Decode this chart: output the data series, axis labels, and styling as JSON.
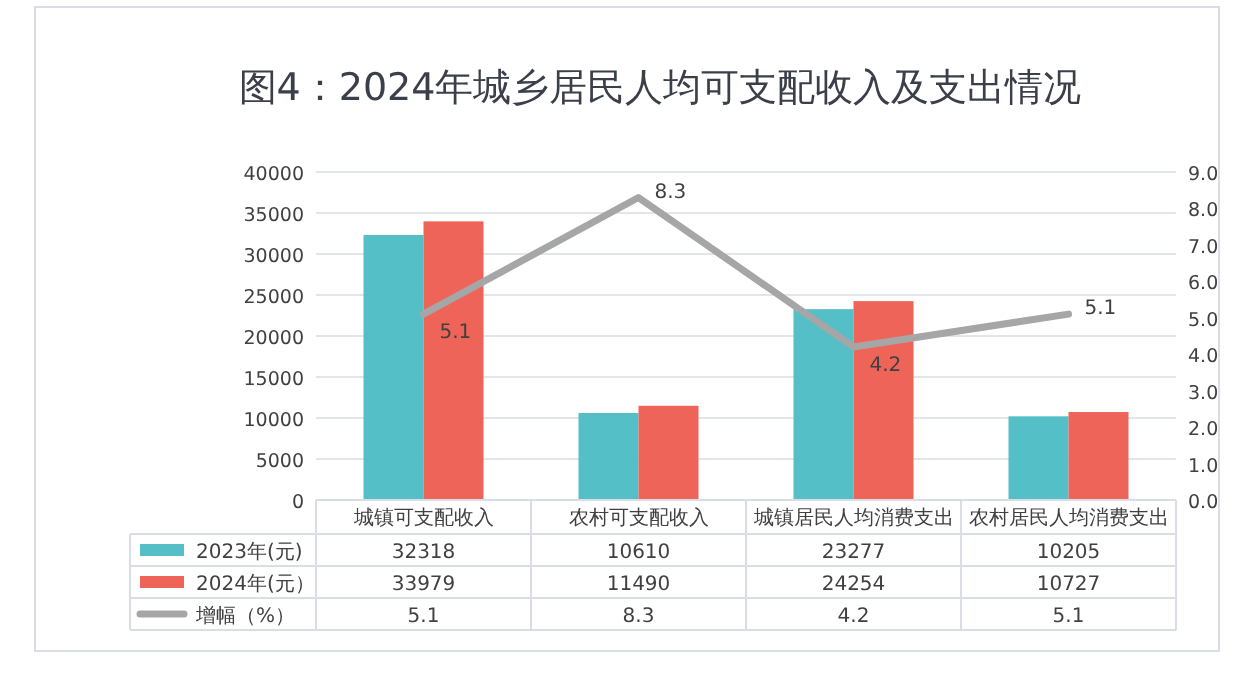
{
  "chart_data": {
    "type": "bar",
    "title": "图4：2024年城乡居民人均可支配收入及支出情况",
    "categories": [
      "城镇可支配收入",
      "农村可支配收入",
      "城镇居民人均消费支出",
      "农村居民人均消费支出"
    ],
    "series": [
      {
        "name": "2023年(元)",
        "color": "#55bfc8",
        "values": [
          32318,
          10610,
          23277,
          10205
        ]
      },
      {
        "name": "2024年(元）",
        "color": "#ee6458",
        "values": [
          33979,
          11490,
          24254,
          10727
        ]
      },
      {
        "name": "增幅（%）",
        "type": "line",
        "axis": "y2",
        "color": "#a6a6a6",
        "values": [
          5.1,
          8.3,
          4.2,
          5.1
        ],
        "value_labels": [
          "5.1",
          "8.3",
          "4.2",
          "5.1"
        ]
      }
    ],
    "ylim": [
      0,
      40000
    ],
    "yticks": [
      0,
      5000,
      10000,
      15000,
      20000,
      25000,
      30000,
      35000,
      40000
    ],
    "y2lim": [
      0,
      9
    ],
    "y2ticks": [
      {
        "value": 0,
        "label": "0.0"
      },
      {
        "value": 1,
        "label": "1.0"
      },
      {
        "value": 2,
        "label": "2.0"
      },
      {
        "value": 3,
        "label": "3.0"
      },
      {
        "value": 4,
        "label": "4.0"
      },
      {
        "value": 5,
        "label": "5.0"
      },
      {
        "value": 6,
        "label": "6.0"
      },
      {
        "value": 7,
        "label": "7.0"
      },
      {
        "value": 8,
        "label": "8.0"
      },
      {
        "value": 9,
        "label": "9.0"
      }
    ],
    "grid": "y",
    "legend": "bottom",
    "data_labels": true
  }
}
